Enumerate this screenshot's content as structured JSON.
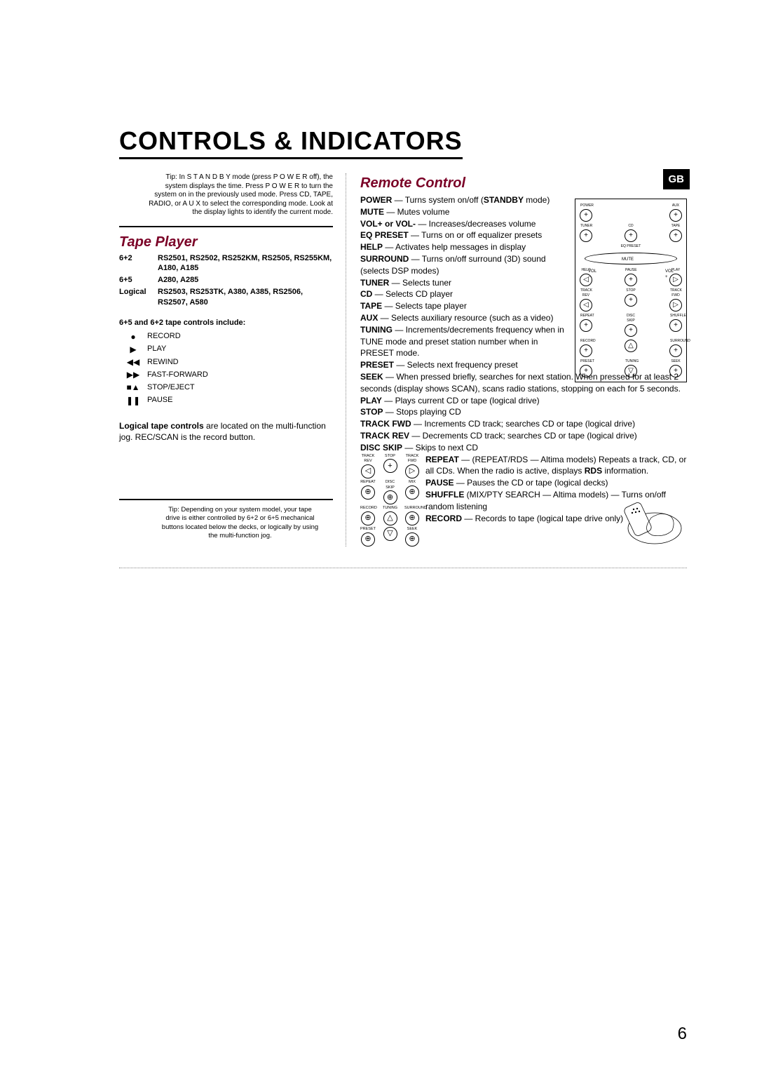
{
  "page": {
    "title": "CONTROLS & INDICATORS",
    "badge": "GB",
    "pageNumber": "6"
  },
  "intro": {
    "text": "Tip: In  S T A N D B Y mode (press  P O W E R off), the system displays the time. Press  P O W E R  to turn the system on in the previously used mode. Press  CD, TAPE, RADIO,  or  A U X  to select the corresponding mode. Look at the display lights to identify the current mode."
  },
  "tapePlayer": {
    "heading": "Tape Player",
    "configs": [
      {
        "label": "6+2",
        "models": "RS2501, RS2502, RS252KM, RS2505, RS255KM, A180, A185"
      },
      {
        "label": "6+5",
        "models": "A280, A285"
      },
      {
        "label": "Logical",
        "models": "RS2503, RS253TK, A380, A385, RS2506, RS2507, A580"
      }
    ],
    "controlsHeading": "6+5 and 6+2 tape controls include:",
    "controls": [
      {
        "sym": "●",
        "label": "RECORD"
      },
      {
        "sym": "▶",
        "label": "PLAY"
      },
      {
        "sym": "◀◀",
        "label": "REWIND"
      },
      {
        "sym": "▶▶",
        "label": "FAST-FORWARD"
      },
      {
        "sym": "■▲",
        "label": "STOP/EJECT"
      },
      {
        "sym": "❚❚",
        "label": "PAUSE"
      }
    ],
    "logicalNote1": "Logical tape controls",
    "logicalNote2": " are located on the multi-function jog. REC/SCAN is the record button.",
    "tip": "Tip: Depending on your system model, your tape drive is either controlled by 6+2 or 6+5 mechanical buttons located below the decks, or logically by using the multi-function jog."
  },
  "remote": {
    "heading": "Remote Control",
    "entries": [
      {
        "k": "POWER",
        "v": " — Turns system on/off (",
        "k2": "STANDBY",
        "v2": " mode)"
      },
      {
        "k": "MUTE",
        "v": " — Mutes volume"
      },
      {
        "k": "VOL+ or VOL-",
        "v": " — Increases/decreases volume"
      },
      {
        "k": "EQ PRESET",
        "v": " — Turns on or off equalizer presets"
      },
      {
        "k": "HELP",
        "v": " — Activates help messages in display"
      },
      {
        "k": "SURROUND",
        "v": " — Turns on/off surround (3D) sound (selects DSP modes)"
      },
      {
        "k": "TUNER",
        "v": " — Selects tuner"
      },
      {
        "k": "CD",
        "v": " — Selects CD player"
      },
      {
        "k": "TAPE",
        "v": " — Selects tape player"
      },
      {
        "k": "AUX",
        "v": " — Selects auxiliary resource (such as a video)"
      },
      {
        "k": "TUNING",
        "v": " — Increments/decrements frequency when in TUNE mode and preset station number when in PRESET mode."
      },
      {
        "k": "PRESET",
        "v": " — Selects next frequency preset"
      },
      {
        "k": "SEEK",
        "v": " — When pressed briefly, searches for next station. When pressed for at least 2 seconds (display shows SCAN), scans radio stations, stopping on each for 5 seconds."
      },
      {
        "k": "PLAY",
        "v": " — Plays current CD or tape (logical drive)"
      },
      {
        "k": "STOP",
        "v": " — Stops playing CD"
      },
      {
        "k": "TRACK FWD",
        "v": " — Increments CD track; searches CD or tape (logical drive)"
      },
      {
        "k": "TRACK REV",
        "v": " — Decrements CD track; searches CD or tape (logical drive)"
      },
      {
        "k": "DISC SKIP",
        "v": " — Skips to next CD"
      },
      {
        "k": "REPEAT",
        "v": " — (REPEAT/RDS — Altima models) Repeats a track, CD, or all CDs. When the radio is active, displays ",
        "k2": "RDS",
        "v2": " information."
      },
      {
        "k": "PAUSE",
        "v": " — Pauses the CD or tape (logical decks)"
      },
      {
        "k": "SHUFFLE",
        "v": " (MIX/PTY SEARCH — Altima models) — Turns on/off random listening"
      },
      {
        "k": "RECORD",
        "v": " — Records to tape (logical tape drive only)"
      }
    ]
  },
  "remoteDiagram": {
    "row1": [
      {
        "l": "POWER",
        "s": "+"
      },
      {
        "l": "AUX",
        "s": "+"
      }
    ],
    "row2": [
      {
        "l": "TUNER",
        "s": "+"
      },
      {
        "l": "CD",
        "s": "+"
      },
      {
        "l": "TAPE",
        "s": "+"
      }
    ],
    "eq": "EQ PRESET",
    "vol": {
      "left": "VOL\n−",
      "right": "VOL\n+",
      "bottom": "MUTE"
    },
    "row3": [
      {
        "l": "HELP",
        "s": "◁"
      },
      {
        "l": "PAUSE",
        "s": "+"
      },
      {
        "l": "PLAY",
        "s": "▷"
      }
    ],
    "row4": [
      {
        "l": "TRACK REV",
        "s": "◁"
      },
      {
        "l": "STOP",
        "s": "+"
      },
      {
        "l": "TRACK FWD",
        "s": "▷"
      }
    ],
    "row5": [
      {
        "l": "REPEAT",
        "s": "+"
      },
      {
        "l": "DISC SKIP",
        "s": "+"
      },
      {
        "l": "SHUFFLE",
        "s": "+"
      }
    ],
    "row6": [
      {
        "l": "RECORD",
        "s": "+"
      },
      {
        "l": "",
        "s": "△"
      },
      {
        "l": "SURROUND",
        "s": "+"
      }
    ],
    "row7": [
      {
        "l": "PRESET",
        "s": "+"
      },
      {
        "l": "TUNING",
        "s": "▽"
      },
      {
        "l": "SEEK",
        "s": "+"
      }
    ]
  },
  "miniRemote": {
    "r1": [
      {
        "l": "TRACK REV",
        "s": "◁"
      },
      {
        "l": "STOP",
        "s": "+"
      },
      {
        "l": "TRACK FWD",
        "s": "▷"
      }
    ],
    "r2": [
      {
        "l": "REPEAT",
        "s": "⊕"
      },
      {
        "l": "DISC SKIP",
        "s": "⊕"
      },
      {
        "l": "MIX",
        "s": "⊕"
      }
    ],
    "r3": [
      {
        "l": "RECORD",
        "s": "⊕"
      },
      {
        "l": "TUNING",
        "s": "△"
      },
      {
        "l": "SURROUND",
        "s": "⊕"
      }
    ],
    "r4": [
      {
        "l": "PRESET",
        "s": "⊕"
      },
      {
        "l": "",
        "s": "▽"
      },
      {
        "l": "SEEK",
        "s": "⊕"
      }
    ]
  }
}
